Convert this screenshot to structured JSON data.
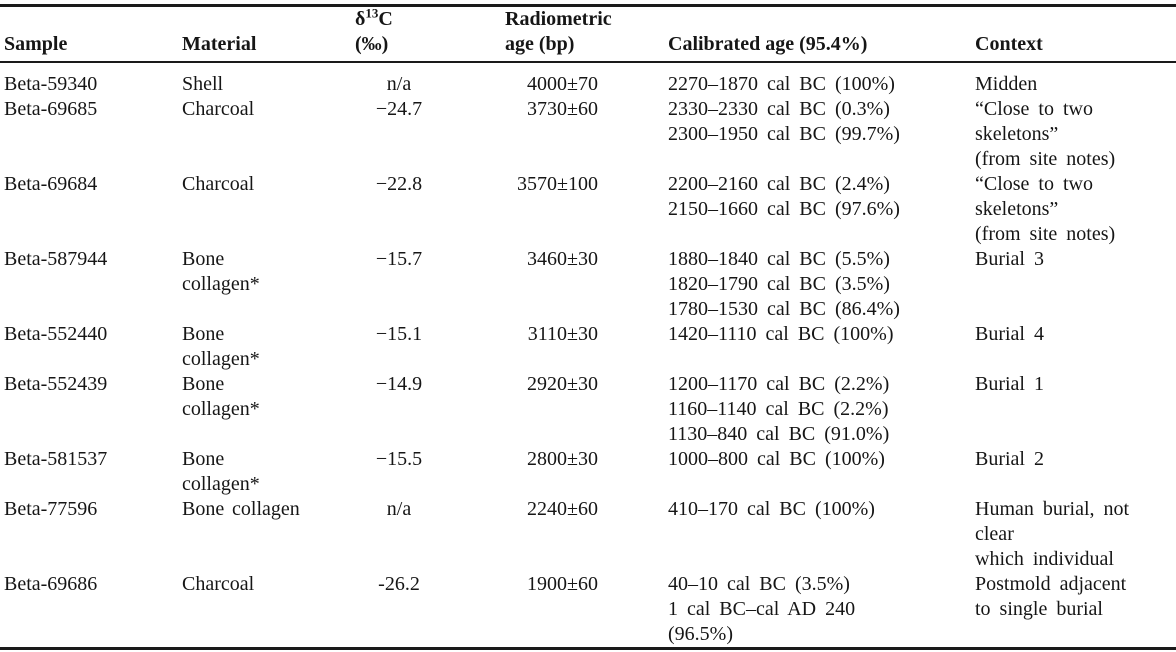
{
  "page": {
    "background": "#ffffff",
    "text_color": "#161616",
    "rule_color": "#1a1a1a"
  },
  "table": {
    "header": {
      "sample": "Sample",
      "material": "Material",
      "d13c": {
        "delta": "δ",
        "sup": "13",
        "c": "C",
        "line2": "(‰)"
      },
      "radiometric": {
        "line1": "Radiometric",
        "line2": "age (bp)"
      },
      "calibrated": "Calibrated age (95.4%)",
      "context": "Context"
    },
    "rows": [
      {
        "sample": "Beta-59340",
        "material": [
          "Shell"
        ],
        "d13c": "n/a",
        "age": "4000±70",
        "calibrated": [
          "2270–1870 cal BC (100%)"
        ],
        "context": [
          "Midden"
        ]
      },
      {
        "sample": "Beta-69685",
        "material": [
          "Charcoal"
        ],
        "d13c": "−24.7",
        "age": "3730±60",
        "calibrated": [
          "2330–2330 cal BC (0.3%)",
          "2300–1950 cal BC (99.7%)"
        ],
        "context": [
          "“Close to two",
          "skeletons”",
          "(from site notes)"
        ]
      },
      {
        "sample": "Beta-69684",
        "material": [
          "Charcoal"
        ],
        "d13c": "−22.8",
        "age": "3570±100",
        "calibrated": [
          "2200–2160 cal BC (2.4%)",
          "2150–1660 cal BC (97.6%)"
        ],
        "context": [
          "“Close to two",
          "skeletons”",
          "(from site notes)"
        ]
      },
      {
        "sample": "Beta-587944",
        "material": [
          "Bone",
          "collagen*"
        ],
        "d13c": "−15.7",
        "age": "3460±30",
        "calibrated": [
          "1880–1840 cal BC (5.5%)",
          "1820–1790 cal BC (3.5%)",
          "1780–1530 cal BC (86.4%)"
        ],
        "context": [
          "Burial 3"
        ]
      },
      {
        "sample": "Beta-552440",
        "material": [
          "Bone",
          "collagen*"
        ],
        "d13c": "−15.1",
        "age": "3110±30",
        "calibrated": [
          "1420–1110 cal BC (100%)"
        ],
        "context": [
          "Burial 4"
        ]
      },
      {
        "sample": "Beta-552439",
        "material": [
          "Bone",
          "collagen*"
        ],
        "d13c": "−14.9",
        "age": "2920±30",
        "calibrated": [
          "1200–1170 cal BC (2.2%)",
          "1160–1140 cal BC (2.2%)",
          "1130–840 cal BC (91.0%)"
        ],
        "context": [
          "Burial 1"
        ]
      },
      {
        "sample": "Beta-581537",
        "material": [
          "Bone",
          "collagen*"
        ],
        "d13c": "−15.5",
        "age": "2800±30",
        "calibrated": [
          "1000–800 cal BC (100%)"
        ],
        "context": [
          "Burial 2"
        ]
      },
      {
        "sample": "Beta-77596",
        "material": [
          "Bone collagen"
        ],
        "d13c": "n/a",
        "age": "2240±60",
        "calibrated": [
          "410–170 cal BC (100%)"
        ],
        "context": [
          "Human burial, not",
          "clear",
          "which individual"
        ]
      },
      {
        "sample": "Beta-69686",
        "material": [
          "Charcoal"
        ],
        "d13c": "-26.2",
        "age": "1900±60",
        "calibrated": [
          "40–10 cal BC (3.5%)",
          "1 cal BC–cal AD 240",
          "(96.5%)"
        ],
        "context": [
          "Postmold adjacent",
          "to single burial"
        ]
      }
    ]
  }
}
